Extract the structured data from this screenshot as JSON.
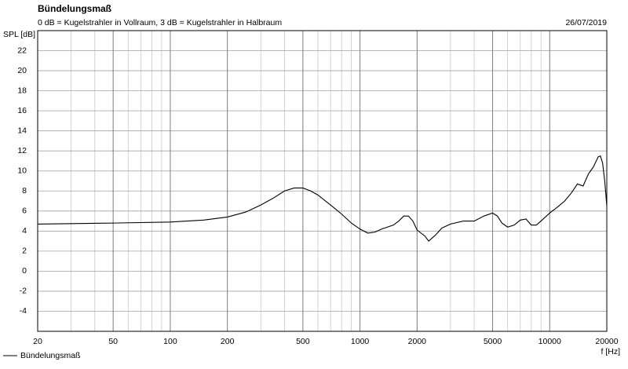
{
  "chart_data": {
    "type": "line",
    "title": "Bündelungsmaß",
    "subtitle": "0 dB = Kugelstrahler in Vollraum, 3 dB = Kugelstrahler in Halbraum",
    "date": "26/07/2019",
    "ylabel": "SPL [dB]",
    "xlabel": "f [Hz]",
    "x": [
      20,
      50,
      100,
      150,
      200,
      250,
      300,
      350,
      400,
      450,
      500,
      550,
      600,
      700,
      800,
      900,
      1000,
      1100,
      1200,
      1300,
      1500,
      1600,
      1700,
      1800,
      1900,
      2000,
      2200,
      2300,
      2500,
      2700,
      3000,
      3500,
      4000,
      4500,
      5000,
      5300,
      5600,
      6000,
      6500,
      7000,
      7500,
      8000,
      8500,
      9000,
      10000,
      11000,
      12000,
      13000,
      14000,
      15000,
      16000,
      17000,
      18000,
      18500,
      19000,
      19500,
      20000
    ],
    "series": [
      {
        "name": "Bündelungsmaß",
        "color": "#000000",
        "values": [
          4.7,
          4.8,
          4.9,
          5.1,
          5.4,
          5.9,
          6.6,
          7.3,
          8.0,
          8.3,
          8.3,
          8.0,
          7.6,
          6.6,
          5.7,
          4.8,
          4.2,
          3.8,
          3.9,
          4.2,
          4.6,
          5.0,
          5.5,
          5.5,
          5.0,
          4.1,
          3.5,
          3.0,
          3.6,
          4.3,
          4.7,
          5.0,
          5.0,
          5.5,
          5.8,
          5.5,
          4.8,
          4.4,
          4.6,
          5.1,
          5.2,
          4.6,
          4.6,
          5.0,
          5.8,
          6.4,
          7.0,
          7.8,
          8.7,
          8.5,
          9.7,
          10.4,
          11.4,
          11.5,
          10.8,
          9.0,
          6.5
        ]
      }
    ],
    "xlim": [
      20,
      20000
    ],
    "xticks": [
      20,
      50,
      100,
      200,
      500,
      1000,
      2000,
      5000,
      10000,
      20000
    ],
    "xscale": "log",
    "ylim": [
      -6,
      24
    ],
    "yticks": [
      -4,
      -2,
      0,
      2,
      4,
      6,
      8,
      10,
      12,
      14,
      16,
      18,
      20,
      22
    ],
    "grid": true
  }
}
